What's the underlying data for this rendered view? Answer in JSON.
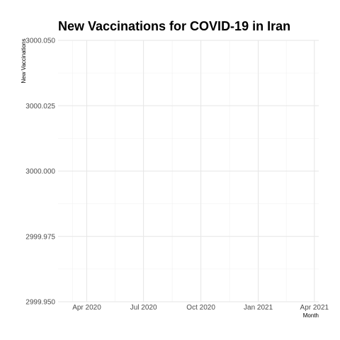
{
  "chart_data": {
    "type": "line",
    "title": "New Vaccinations for COVID-19 in Iran",
    "xlabel": "Month",
    "ylabel": "New Vaccinations",
    "x_ticks": [
      "Apr 2020",
      "Jul 2020",
      "Oct 2020",
      "Jan 2021",
      "Apr 2021"
    ],
    "x_tick_dates": [
      "2020-04-01",
      "2020-07-01",
      "2020-10-01",
      "2021-01-01",
      "2021-04-01"
    ],
    "xlim": [
      "2020-02-15",
      "2021-04-08"
    ],
    "y_ticks": [
      "2999.950",
      "2999.975",
      "3000.000",
      "3000.025",
      "3000.050"
    ],
    "y_tick_values": [
      2999.95,
      2999.975,
      3000.0,
      3000.025,
      3000.05
    ],
    "ylim": [
      2999.95,
      3000.05
    ],
    "series": [],
    "grid": true,
    "legend": "none"
  }
}
